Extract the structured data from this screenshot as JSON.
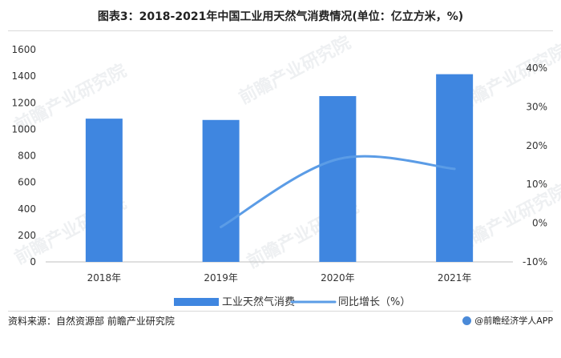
{
  "title": "图表3：2018-2021年中国工业用天然气消费情况(单位：亿立方米，%)",
  "source": "资料来源：自然资源部 前瞻产业研究院",
  "brand": "@前瞻经济学人APP",
  "watermark": "前瞻产业研究院",
  "chart_data": {
    "type": "bar",
    "categories": [
      "2018年",
      "2019年",
      "2020年",
      "2021年"
    ],
    "series": [
      {
        "name": "工业天然气消费",
        "type": "bar",
        "axis": "left",
        "color": "#3f86e0",
        "values": [
          1080,
          1070,
          1250,
          1415
        ]
      },
      {
        "name": "同比增长（%）",
        "type": "line",
        "axis": "right",
        "color": "#5b9ce6",
        "values": [
          null,
          -1,
          16.5,
          14
        ]
      }
    ],
    "y_left": {
      "min": 0,
      "max": 1600,
      "ticks": [
        0,
        200,
        400,
        600,
        800,
        1000,
        1200,
        1400,
        1600
      ],
      "tick_labels": [
        "0",
        "200",
        "400",
        "600",
        "800",
        "1000",
        "1200",
        "1400",
        "1600"
      ]
    },
    "y_right": {
      "min": -10,
      "max": 40,
      "ticks": [
        -10,
        0,
        10,
        20,
        30,
        40
      ],
      "tick_labels": [
        "-10%",
        "0%",
        "10%",
        "20%",
        "30%",
        "40%"
      ]
    },
    "grid": false,
    "legend_position": "bottom"
  }
}
